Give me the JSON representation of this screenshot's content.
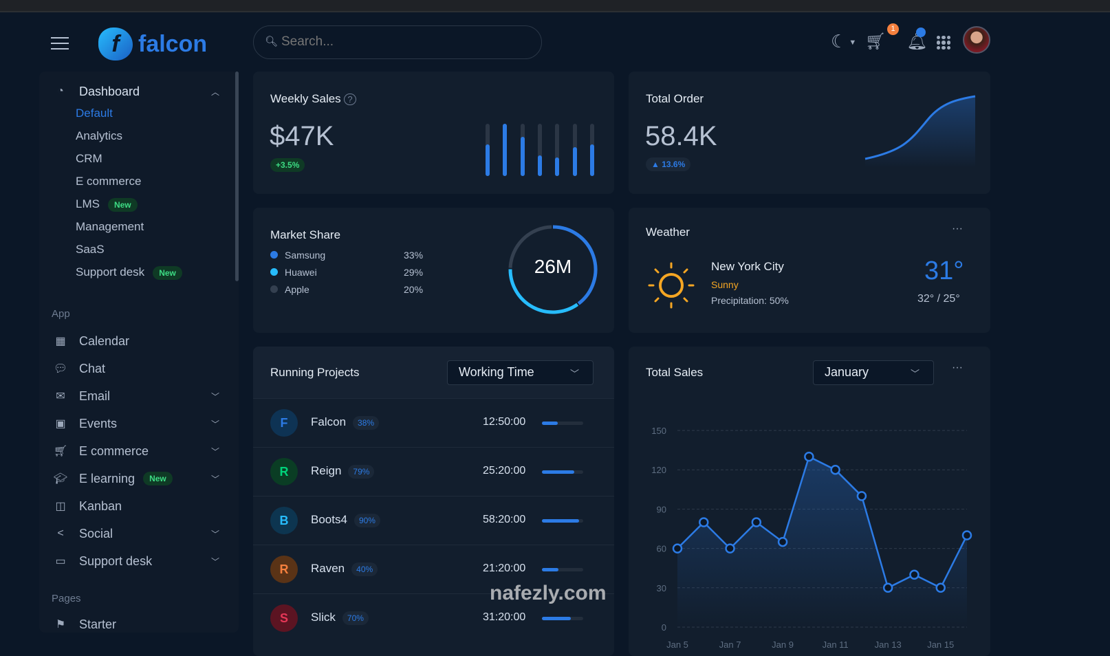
{
  "header": {
    "brand": "falcon",
    "search_placeholder": "Search...",
    "cart_count": "1",
    "icons": [
      "menu-icon",
      "moon-icon",
      "cart-icon",
      "bell-icon",
      "apps-grid-icon",
      "avatar"
    ]
  },
  "sidebar": {
    "dashboard": {
      "label": "Dashboard",
      "items": [
        {
          "label": "Default",
          "active": true
        },
        {
          "label": "Analytics"
        },
        {
          "label": "CRM"
        },
        {
          "label": "E commerce"
        },
        {
          "label": "LMS",
          "badge": "New"
        },
        {
          "label": "Management"
        },
        {
          "label": "SaaS"
        },
        {
          "label": "Support desk",
          "badge": "New"
        }
      ]
    },
    "app_heading": "App",
    "app_items": [
      {
        "label": "Calendar",
        "icon": "calendar-icon"
      },
      {
        "label": "Chat",
        "icon": "chat-icon"
      },
      {
        "label": "Email",
        "icon": "envelope-icon",
        "chevron": true
      },
      {
        "label": "Events",
        "icon": "events-icon",
        "chevron": true
      },
      {
        "label": "E commerce",
        "icon": "cart-icon",
        "chevron": true
      },
      {
        "label": "E learning",
        "icon": "graduation-cap-icon",
        "chevron": true,
        "badge": "New"
      },
      {
        "label": "Kanban",
        "icon": "kanban-icon"
      },
      {
        "label": "Social",
        "icon": "share-icon",
        "chevron": true
      },
      {
        "label": "Support desk",
        "icon": "ticket-icon",
        "chevron": true
      }
    ],
    "pages_heading": "Pages",
    "pages_items": [
      {
        "label": "Starter",
        "icon": "flag-icon"
      }
    ]
  },
  "weekly_sales": {
    "title": "Weekly Sales",
    "value": "$47K",
    "change": "+3.5%",
    "bar_fill": [
      0.6,
      1.0,
      0.75,
      0.4,
      0.35,
      0.55,
      0.6
    ]
  },
  "total_order": {
    "title": "Total Order",
    "value": "58.4K",
    "change": "13.6%"
  },
  "market_share": {
    "title": "Market Share",
    "total": "26M",
    "items": [
      {
        "name": "Samsung",
        "pct": "33%",
        "value": 33,
        "color": "#2c7be5"
      },
      {
        "name": "Huawei",
        "pct": "29%",
        "value": 29,
        "color": "#27bcfd"
      },
      {
        "name": "Apple",
        "pct": "20%",
        "value": 20,
        "color": "#344050"
      }
    ]
  },
  "weather": {
    "title": "Weather",
    "city": "New York City",
    "condition": "Sunny",
    "precipitation": "Precipitation: 50%",
    "temp": "31°",
    "range": "32° / 25°"
  },
  "running_projects": {
    "title": "Running Projects",
    "filter": "Working Time",
    "projects": [
      {
        "initial": "F",
        "name": "Falcon",
        "pct": "38%",
        "progress": 38,
        "time": "12:50:00",
        "bg": "#0e3354",
        "fg": "#2c7be5"
      },
      {
        "initial": "R",
        "name": "Reign",
        "pct": "79%",
        "progress": 79,
        "time": "25:20:00",
        "bg": "#0a3d24",
        "fg": "#00d27a"
      },
      {
        "initial": "B",
        "name": "Boots4",
        "pct": "90%",
        "progress": 90,
        "time": "58:20:00",
        "bg": "#0d3550",
        "fg": "#27bcfd"
      },
      {
        "initial": "R",
        "name": "Raven",
        "pct": "40%",
        "progress": 40,
        "time": "21:20:00",
        "bg": "#5a3316",
        "fg": "#f5803e"
      },
      {
        "initial": "S",
        "name": "Slick",
        "pct": "70%",
        "progress": 70,
        "time": "31:20:00",
        "bg": "#5c1422",
        "fg": "#e63757"
      }
    ]
  },
  "total_sales": {
    "title": "Total Sales",
    "filter": "January"
  },
  "chart_data": {
    "type": "line",
    "title": "Total Sales",
    "x": [
      "Jan 5",
      "Jan 6",
      "Jan 7",
      "Jan 8",
      "Jan 9",
      "Jan 10",
      "Jan 11",
      "Jan 12",
      "Jan 13",
      "Jan 14",
      "Jan 15",
      "Jan 16"
    ],
    "x_tick_labels": [
      "Jan 5",
      "Jan 7",
      "Jan 9",
      "Jan 11",
      "Jan 13",
      "Jan 15"
    ],
    "values": [
      60,
      80,
      60,
      80,
      65,
      130,
      120,
      100,
      30,
      40,
      30,
      70
    ],
    "y_ticks": [
      0,
      30,
      60,
      90,
      120,
      150
    ],
    "ylim": [
      0,
      150
    ],
    "grid": true,
    "color": "#2c7be5"
  }
}
